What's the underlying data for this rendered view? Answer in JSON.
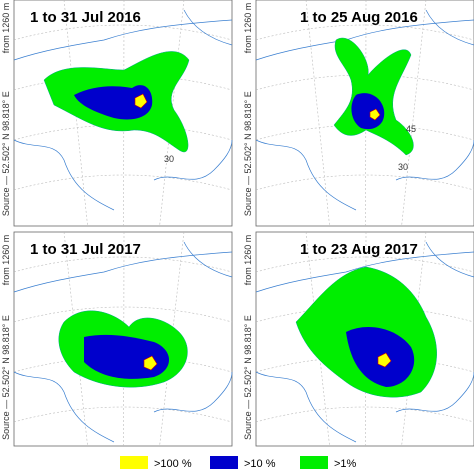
{
  "panels": [
    {
      "title": "1 to 31 Jul 2016",
      "source": "Source — 52.502° N 98.818° E",
      "height": "from 1260 m",
      "labels": [
        "30"
      ]
    },
    {
      "title": "1 to 25 Aug 2016",
      "source": "Source — 52.502° N 98.818° E",
      "height": "from 1260 m",
      "labels": [
        "45",
        "30"
      ]
    },
    {
      "title": "1 to 31 Jul 2017",
      "source": "Source — 52.502° N 98.818° E",
      "height": "from 1260 m",
      "labels": []
    },
    {
      "title": "1 to 23 Aug 2017",
      "source": "Source — 52.502° N 98.818° E",
      "height": "from 1260 m",
      "labels": []
    }
  ],
  "legend": [
    {
      "label": ">100 %",
      "color": "#ffff00"
    },
    {
      "label": ">10 %",
      "color": "#0000cc"
    },
    {
      "label": ">1%",
      "color": "#00ee00"
    }
  ]
}
